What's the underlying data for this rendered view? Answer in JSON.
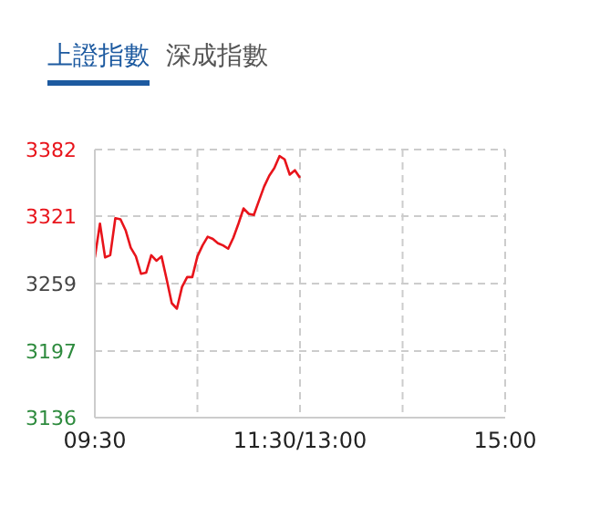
{
  "chart_data": {
    "type": "line",
    "title": "上證指數",
    "annotations": [
      "深成指數"
    ],
    "categories": [
      "09:30",
      null,
      null,
      null,
      null,
      null,
      null,
      null,
      null,
      null,
      null,
      null,
      null,
      null,
      null,
      null,
      null,
      null,
      null,
      null,
      null,
      null,
      null,
      null,
      null,
      null,
      null,
      null,
      null,
      null,
      null,
      null,
      null,
      null,
      null,
      null,
      null,
      null,
      null,
      null,
      "11:30/13:00",
      null,
      null,
      null,
      null,
      null,
      null,
      null,
      null,
      null,
      null,
      null,
      null,
      null,
      null,
      null,
      null,
      null,
      null,
      null,
      null,
      null,
      null,
      null,
      null,
      null,
      null,
      null,
      null,
      null,
      null,
      null,
      null,
      null,
      null,
      null,
      null,
      null,
      null,
      null,
      "15:00"
    ],
    "series": [
      {
        "color": "#e8141b",
        "values": [
          3283,
          3314,
          3283,
          3285,
          3319,
          3318,
          3308,
          3292,
          3284,
          3268,
          3269,
          3285,
          3280,
          3284,
          3263,
          3241,
          3236,
          3256,
          3265,
          3265,
          3284,
          3294,
          3302,
          3300,
          3296,
          3294,
          3291,
          3301,
          3314,
          3328,
          3323,
          3322,
          3335,
          3348,
          3358,
          3365,
          3376,
          3373,
          3359,
          3363,
          3356,
          null,
          null,
          null,
          null,
          null,
          null,
          null,
          null,
          null,
          null,
          null,
          null,
          null,
          null,
          null,
          null,
          null,
          null,
          null,
          null,
          null,
          null,
          null,
          null,
          null,
          null,
          null,
          null,
          null,
          null,
          null,
          null,
          null,
          null,
          null,
          null,
          null,
          null,
          null,
          null
        ]
      }
    ],
    "ylim": [
      3136,
      3382
    ],
    "yticks": [
      3136,
      3197,
      3259,
      3321,
      3382
    ],
    "grid": true,
    "marker": "none",
    "line_style": "solid"
  }
}
